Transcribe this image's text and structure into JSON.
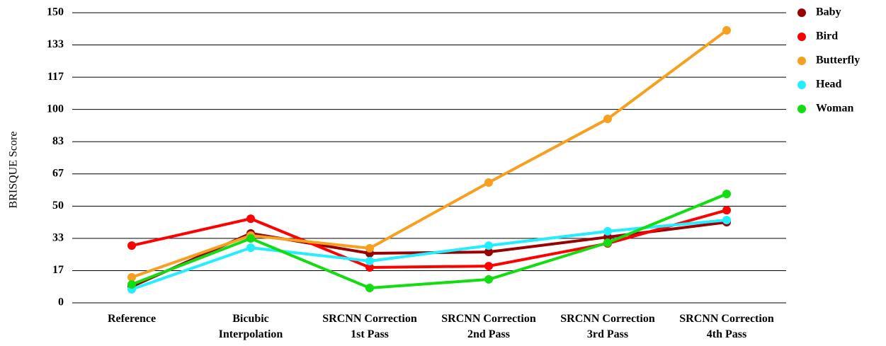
{
  "chart_data": {
    "type": "line",
    "ylabel": "BRISQUE Score",
    "categories": [
      "Reference",
      "Bicubic\nInterpolation",
      "SRCNN Correction\n1st Pass",
      "SRCNN Correction\n2nd Pass",
      "SRCNN Correction\n3rd Pass",
      "SRCNN Correction\n4th Pass"
    ],
    "series": [
      {
        "name": "Baby",
        "color": "#990000",
        "values": [
          8.4,
          35.9,
          25.6,
          26.3,
          34.0,
          41.7
        ]
      },
      {
        "name": "Bird",
        "color": "#ff0000",
        "values": [
          29.6,
          43.5,
          18.3,
          19.0,
          30.7,
          47.9
        ]
      },
      {
        "name": "Butterfly",
        "color": "#f7a020",
        "values": [
          13.2,
          34.8,
          28.2,
          62.2,
          95.1,
          140.9
        ]
      },
      {
        "name": "Head",
        "color": "#22eeff",
        "values": [
          7.0,
          28.5,
          21.6,
          29.6,
          37.0,
          42.8
        ]
      },
      {
        "name": "Woman",
        "color": "#11dd11",
        "values": [
          9.5,
          33.3,
          7.7,
          12.1,
          31.1,
          56.3
        ]
      }
    ],
    "ylim": [
      0,
      150
    ],
    "yticks": [
      0,
      {
        "value": 16.667,
        "label": "17"
      },
      {
        "value": 33.333,
        "label": "33"
      },
      50,
      {
        "value": 66.667,
        "label": "67"
      },
      {
        "value": 83.333,
        "label": "83"
      },
      100,
      {
        "value": 116.667,
        "label": "117"
      },
      {
        "value": 133.333,
        "label": "133"
      },
      150
    ],
    "grid": true,
    "legend": "right"
  }
}
